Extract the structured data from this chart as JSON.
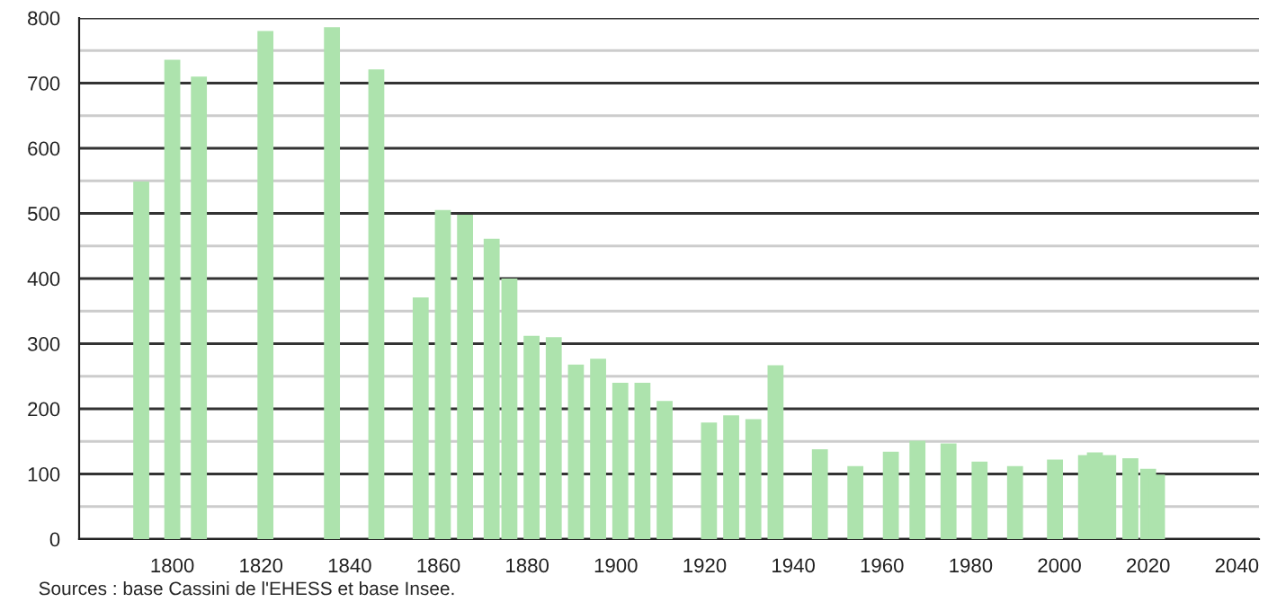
{
  "chart_data": {
    "type": "bar",
    "color": "#ade3ad",
    "x": [
      1793,
      1800,
      1806,
      1821,
      1836,
      1846,
      1856,
      1861,
      1866,
      1872,
      1876,
      1881,
      1886,
      1891,
      1896,
      1901,
      1906,
      1911,
      1921,
      1926,
      1931,
      1936,
      1946,
      1954,
      1962,
      1968,
      1975,
      1982,
      1990,
      1999,
      2006,
      2008,
      2011,
      2016,
      2020,
      2022
    ],
    "values": [
      549,
      736,
      710,
      780,
      786,
      721,
      371,
      505,
      498,
      461,
      400,
      312,
      310,
      268,
      277,
      240,
      240,
      212,
      179,
      190,
      184,
      267,
      138,
      112,
      134,
      151,
      147,
      119,
      112,
      122,
      129,
      133,
      129,
      124,
      108,
      99
    ],
    "xlim": [
      1779,
      2045
    ],
    "xticks": [
      1800,
      1820,
      1840,
      1860,
      1880,
      1900,
      1920,
      1940,
      1960,
      1980,
      2000,
      2020,
      2040
    ],
    "ylim": [
      0,
      800
    ],
    "yticks": [
      0,
      {
        "value": 50,
        "label": null
      },
      100,
      {
        "value": 150,
        "label": null
      },
      200,
      {
        "value": 250,
        "label": null
      },
      300,
      {
        "value": 350,
        "label": null
      },
      400,
      {
        "value": 450,
        "label": null
      },
      500,
      {
        "value": 550,
        "label": null
      },
      600,
      {
        "value": 650,
        "label": null
      },
      700,
      {
        "value": 750,
        "label": null
      },
      800
    ],
    "grid": "y",
    "annotations": [
      "Sources : base Cassini de l'EHESS et base Insee."
    ]
  }
}
